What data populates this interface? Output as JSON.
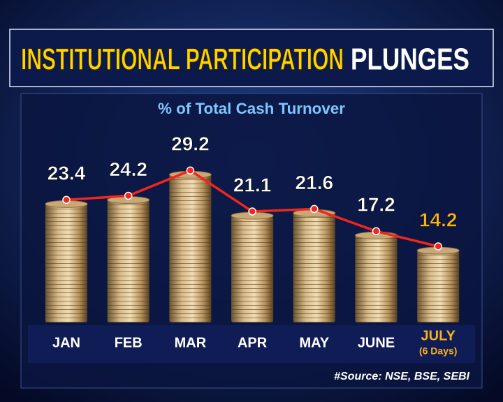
{
  "chart_data": {
    "type": "bar-line",
    "title": "INSTITUTIONAL PARTICIPATION",
    "title_end": "PLUNGES",
    "subtitle": "% of Total Cash Turnover",
    "categories": [
      "JAN",
      "FEB",
      "MAR",
      "APR",
      "MAY",
      "JUNE",
      "JULY"
    ],
    "category_notes": [
      null,
      null,
      null,
      null,
      null,
      null,
      "(6 Days)"
    ],
    "values": [
      23.4,
      24.2,
      29.2,
      21.1,
      21.6,
      17.2,
      14.2
    ],
    "label_colors": [
      "#ffffff",
      "#ffffff",
      "#ffffff",
      "#ffffff",
      "#ffffff",
      "#ffffff",
      "#f7b21e"
    ],
    "bar_color": "#c9a877",
    "line_color": "#f0261c",
    "source": "#Source: NSE, BSE, SEBI"
  }
}
